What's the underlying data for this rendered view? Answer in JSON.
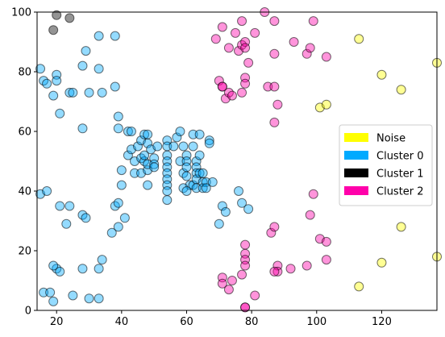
{
  "chart_data": {
    "type": "scatter",
    "title": "",
    "xlabel": "",
    "ylabel": "",
    "xlim": [
      14,
      137
    ],
    "ylim": [
      0,
      100
    ],
    "xticks": [
      20,
      40,
      60,
      80,
      100,
      120
    ],
    "yticks": [
      0,
      20,
      40,
      60,
      80,
      100
    ],
    "grid": false,
    "legend_position": "right",
    "series": [
      {
        "name": "Noise",
        "color": "#ffff00",
        "points": [
          [
            113,
            91
          ],
          [
            120,
            79
          ],
          [
            126,
            74
          ],
          [
            137,
            83
          ],
          [
            101,
            68
          ],
          [
            103,
            69
          ],
          [
            126,
            28
          ],
          [
            120,
            16
          ],
          [
            113,
            8
          ],
          [
            137,
            18
          ]
        ]
      },
      {
        "name": "Cluster 0",
        "color": "#00aaff",
        "points": [
          [
            15,
            81
          ],
          [
            16,
            77
          ],
          [
            17,
            76
          ],
          [
            20,
            79
          ],
          [
            20,
            77
          ],
          [
            19,
            72
          ],
          [
            21,
            66
          ],
          [
            24,
            73
          ],
          [
            25,
            73
          ],
          [
            28,
            82
          ],
          [
            29,
            87
          ],
          [
            30,
            73
          ],
          [
            33,
            92
          ],
          [
            33,
            81
          ],
          [
            34,
            73
          ],
          [
            38,
            75
          ],
          [
            38,
            92
          ],
          [
            28,
            61
          ],
          [
            39,
            65
          ],
          [
            39,
            61
          ],
          [
            42,
            60
          ],
          [
            43,
            60
          ],
          [
            15,
            39
          ],
          [
            17,
            40
          ],
          [
            21,
            35
          ],
          [
            23,
            29
          ],
          [
            24,
            35
          ],
          [
            28,
            32
          ],
          [
            29,
            31
          ],
          [
            37,
            26
          ],
          [
            39,
            28
          ],
          [
            41,
            31
          ],
          [
            20,
            14
          ],
          [
            21,
            13
          ],
          [
            19,
            15
          ],
          [
            16,
            6
          ],
          [
            18,
            6
          ],
          [
            19,
            3
          ],
          [
            25,
            5
          ],
          [
            28,
            14
          ],
          [
            30,
            4
          ],
          [
            33,
            4
          ],
          [
            33,
            14
          ],
          [
            34,
            17
          ],
          [
            38,
            35
          ],
          [
            39,
            36
          ],
          [
            40,
            42
          ],
          [
            40,
            47
          ],
          [
            42,
            52
          ],
          [
            43,
            54
          ],
          [
            44,
            50
          ],
          [
            44,
            46
          ],
          [
            45,
            55
          ],
          [
            46,
            51
          ],
          [
            46,
            46
          ],
          [
            46,
            57
          ],
          [
            47,
            59
          ],
          [
            47,
            50
          ],
          [
            47,
            52
          ],
          [
            48,
            59
          ],
          [
            48,
            47
          ],
          [
            48,
            49
          ],
          [
            48,
            42
          ],
          [
            48,
            56
          ],
          [
            49,
            54
          ],
          [
            50,
            51
          ],
          [
            50,
            49
          ],
          [
            50,
            48
          ],
          [
            51,
            55
          ],
          [
            54,
            57
          ],
          [
            54,
            55
          ],
          [
            54,
            52
          ],
          [
            54,
            50
          ],
          [
            54,
            48
          ],
          [
            54,
            46
          ],
          [
            54,
            44
          ],
          [
            54,
            42
          ],
          [
            54,
            40
          ],
          [
            54,
            37
          ],
          [
            56,
            55
          ],
          [
            57,
            58
          ],
          [
            58,
            60
          ],
          [
            58,
            50
          ],
          [
            59,
            55
          ],
          [
            59,
            46
          ],
          [
            60,
            52
          ],
          [
            60,
            50
          ],
          [
            60,
            48
          ],
          [
            60,
            45
          ],
          [
            61,
            42
          ],
          [
            62,
            42
          ],
          [
            62,
            55
          ],
          [
            62,
            59
          ],
          [
            63,
            50
          ],
          [
            63,
            48
          ],
          [
            63,
            46
          ],
          [
            63,
            44
          ],
          [
            63,
            41
          ],
          [
            64,
            59
          ],
          [
            64,
            52
          ],
          [
            64,
            46
          ],
          [
            65,
            46
          ],
          [
            65,
            43
          ],
          [
            65,
            41
          ],
          [
            66,
            43
          ],
          [
            66,
            41
          ],
          [
            67,
            57
          ],
          [
            67,
            56
          ],
          [
            68,
            43
          ],
          [
            70,
            29
          ],
          [
            71,
            35
          ],
          [
            72,
            33
          ],
          [
            76,
            40
          ],
          [
            77,
            36
          ],
          [
            79,
            34
          ],
          [
            59,
            41
          ],
          [
            60,
            40
          ]
        ]
      },
      {
        "name": "Cluster 1",
        "color": "#000000",
        "points": [
          [
            20,
            99
          ],
          [
            24,
            98
          ],
          [
            19,
            94
          ]
        ]
      },
      {
        "name": "Cluster 2",
        "color": "#ff00aa",
        "points": [
          [
            69,
            91
          ],
          [
            71,
            95
          ],
          [
            73,
            88
          ],
          [
            75,
            93
          ],
          [
            76,
            87
          ],
          [
            77,
            97
          ],
          [
            77,
            89
          ],
          [
            78,
            90
          ],
          [
            78,
            88
          ],
          [
            79,
            83
          ],
          [
            81,
            93
          ],
          [
            84,
            100
          ],
          [
            87,
            97
          ],
          [
            87,
            86
          ],
          [
            93,
            90
          ],
          [
            97,
            86
          ],
          [
            98,
            88
          ],
          [
            99,
            97
          ],
          [
            103,
            85
          ],
          [
            70,
            77
          ],
          [
            71,
            75
          ],
          [
            71,
            75
          ],
          [
            72,
            71
          ],
          [
            73,
            73
          ],
          [
            74,
            72
          ],
          [
            77,
            73
          ],
          [
            78,
            78
          ],
          [
            78,
            76
          ],
          [
            85,
            75
          ],
          [
            87,
            75
          ],
          [
            88,
            69
          ],
          [
            87,
            63
          ],
          [
            71,
            11
          ],
          [
            71,
            9
          ],
          [
            73,
            7
          ],
          [
            74,
            10
          ],
          [
            77,
            12
          ],
          [
            78,
            22
          ],
          [
            78,
            19
          ],
          [
            78,
            17
          ],
          [
            78,
            15
          ],
          [
            78,
            1
          ],
          [
            78,
            1
          ],
          [
            81,
            5
          ],
          [
            86,
            26
          ],
          [
            87,
            28
          ],
          [
            88,
            15
          ],
          [
            88,
            13
          ],
          [
            87,
            13
          ],
          [
            92,
            14
          ],
          [
            97,
            15
          ],
          [
            98,
            32
          ],
          [
            99,
            39
          ],
          [
            101,
            24
          ],
          [
            103,
            23
          ],
          [
            103,
            17
          ]
        ]
      }
    ]
  }
}
